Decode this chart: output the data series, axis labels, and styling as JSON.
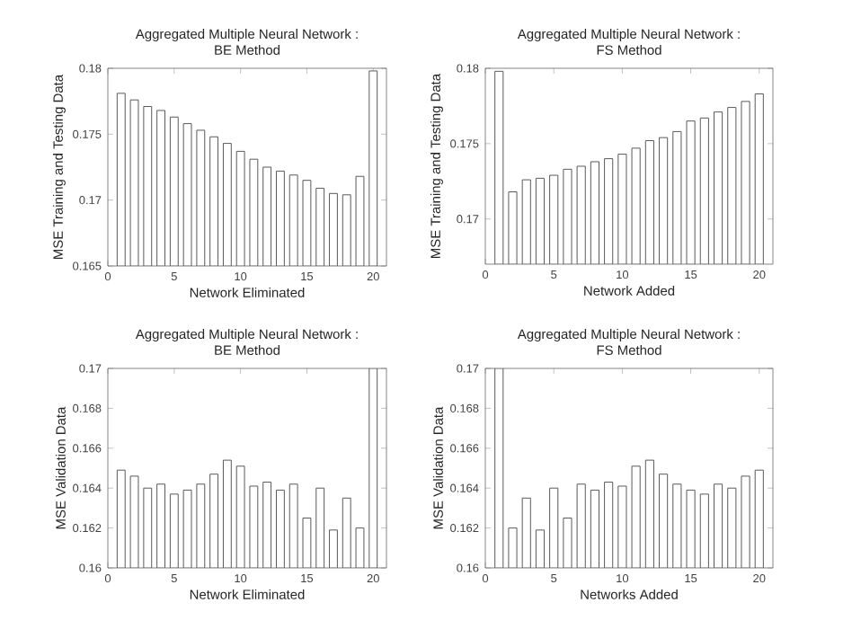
{
  "chart_data": [
    {
      "type": "bar",
      "title": "Aggregated Multiple Neural Network :",
      "subtitle": "BE Method",
      "xlabel": "Network Eliminated",
      "ylabel": "MSE Training and Testing Data",
      "x": [
        1,
        2,
        3,
        4,
        5,
        6,
        7,
        8,
        9,
        10,
        11,
        12,
        13,
        14,
        15,
        16,
        17,
        18,
        19,
        20
      ],
      "values": [
        0.1781,
        0.1776,
        0.1771,
        0.1768,
        0.1763,
        0.1758,
        0.1753,
        0.1748,
        0.1743,
        0.1737,
        0.1731,
        0.1725,
        0.1722,
        0.1719,
        0.1715,
        0.1709,
        0.1705,
        0.1704,
        0.1718,
        0.1798
      ],
      "color": "#ffffff",
      "xlim": [
        0,
        21
      ],
      "ylim": [
        0.165,
        0.18
      ],
      "xticks": [
        0,
        5,
        10,
        15,
        20
      ],
      "yticks": [
        0.165,
        0.17,
        0.175,
        0.18
      ]
    },
    {
      "type": "bar",
      "title": "Aggregated Multiple Neural Network :",
      "subtitle": "FS Method",
      "xlabel": "Network Added",
      "ylabel": "MSE Training and Testing Data",
      "x": [
        1,
        2,
        3,
        4,
        5,
        6,
        7,
        8,
        9,
        10,
        11,
        12,
        13,
        14,
        15,
        16,
        17,
        18,
        19,
        20
      ],
      "values": [
        0.1798,
        0.1718,
        0.1726,
        0.1727,
        0.1729,
        0.1733,
        0.1735,
        0.1738,
        0.174,
        0.1743,
        0.1747,
        0.1752,
        0.1754,
        0.1758,
        0.1765,
        0.1767,
        0.1771,
        0.1774,
        0.1778,
        0.1783
      ],
      "color": "#ffffff",
      "xlim": [
        0,
        21
      ],
      "ylim": [
        0.167,
        0.18
      ],
      "xticks": [
        0,
        5,
        10,
        15,
        20
      ],
      "yticks": [
        0.17,
        0.175,
        0.18
      ]
    },
    {
      "type": "bar",
      "title": "Aggregated Multiple Neural Network :",
      "subtitle": "BE Method",
      "xlabel": "Network Eliminated",
      "ylabel": "MSE Validation Data",
      "x": [
        1,
        2,
        3,
        4,
        5,
        6,
        7,
        8,
        9,
        10,
        11,
        12,
        13,
        14,
        15,
        16,
        17,
        18,
        19,
        20
      ],
      "values": [
        0.1649,
        0.1646,
        0.164,
        0.1642,
        0.1637,
        0.1639,
        0.1642,
        0.1647,
        0.1654,
        0.1651,
        0.1641,
        0.1643,
        0.1639,
        0.1642,
        0.1625,
        0.164,
        0.1619,
        0.1635,
        0.162,
        0.17
      ],
      "color": "#ffffff",
      "xlim": [
        0,
        21
      ],
      "ylim": [
        0.16,
        0.17
      ],
      "xticks": [
        0,
        5,
        10,
        15,
        20
      ],
      "yticks": [
        0.16,
        0.162,
        0.164,
        0.166,
        0.168,
        0.17
      ]
    },
    {
      "type": "bar",
      "title": "Aggregated Multiple Neural Network :",
      "subtitle": "FS Method",
      "xlabel": "Networks Added",
      "ylabel": "MSE Validation Data",
      "x": [
        1,
        2,
        3,
        4,
        5,
        6,
        7,
        8,
        9,
        10,
        11,
        12,
        13,
        14,
        15,
        16,
        17,
        18,
        19,
        20
      ],
      "values": [
        0.17,
        0.162,
        0.1635,
        0.1619,
        0.164,
        0.1625,
        0.1642,
        0.1639,
        0.1643,
        0.1641,
        0.1651,
        0.1654,
        0.1647,
        0.1642,
        0.1639,
        0.1637,
        0.1642,
        0.164,
        0.1646,
        0.1649
      ],
      "color": "#ffffff",
      "xlim": [
        0,
        21
      ],
      "ylim": [
        0.16,
        0.17
      ],
      "xticks": [
        0,
        5,
        10,
        15,
        20
      ],
      "yticks": [
        0.16,
        0.162,
        0.164,
        0.166,
        0.168,
        0.17
      ]
    }
  ]
}
